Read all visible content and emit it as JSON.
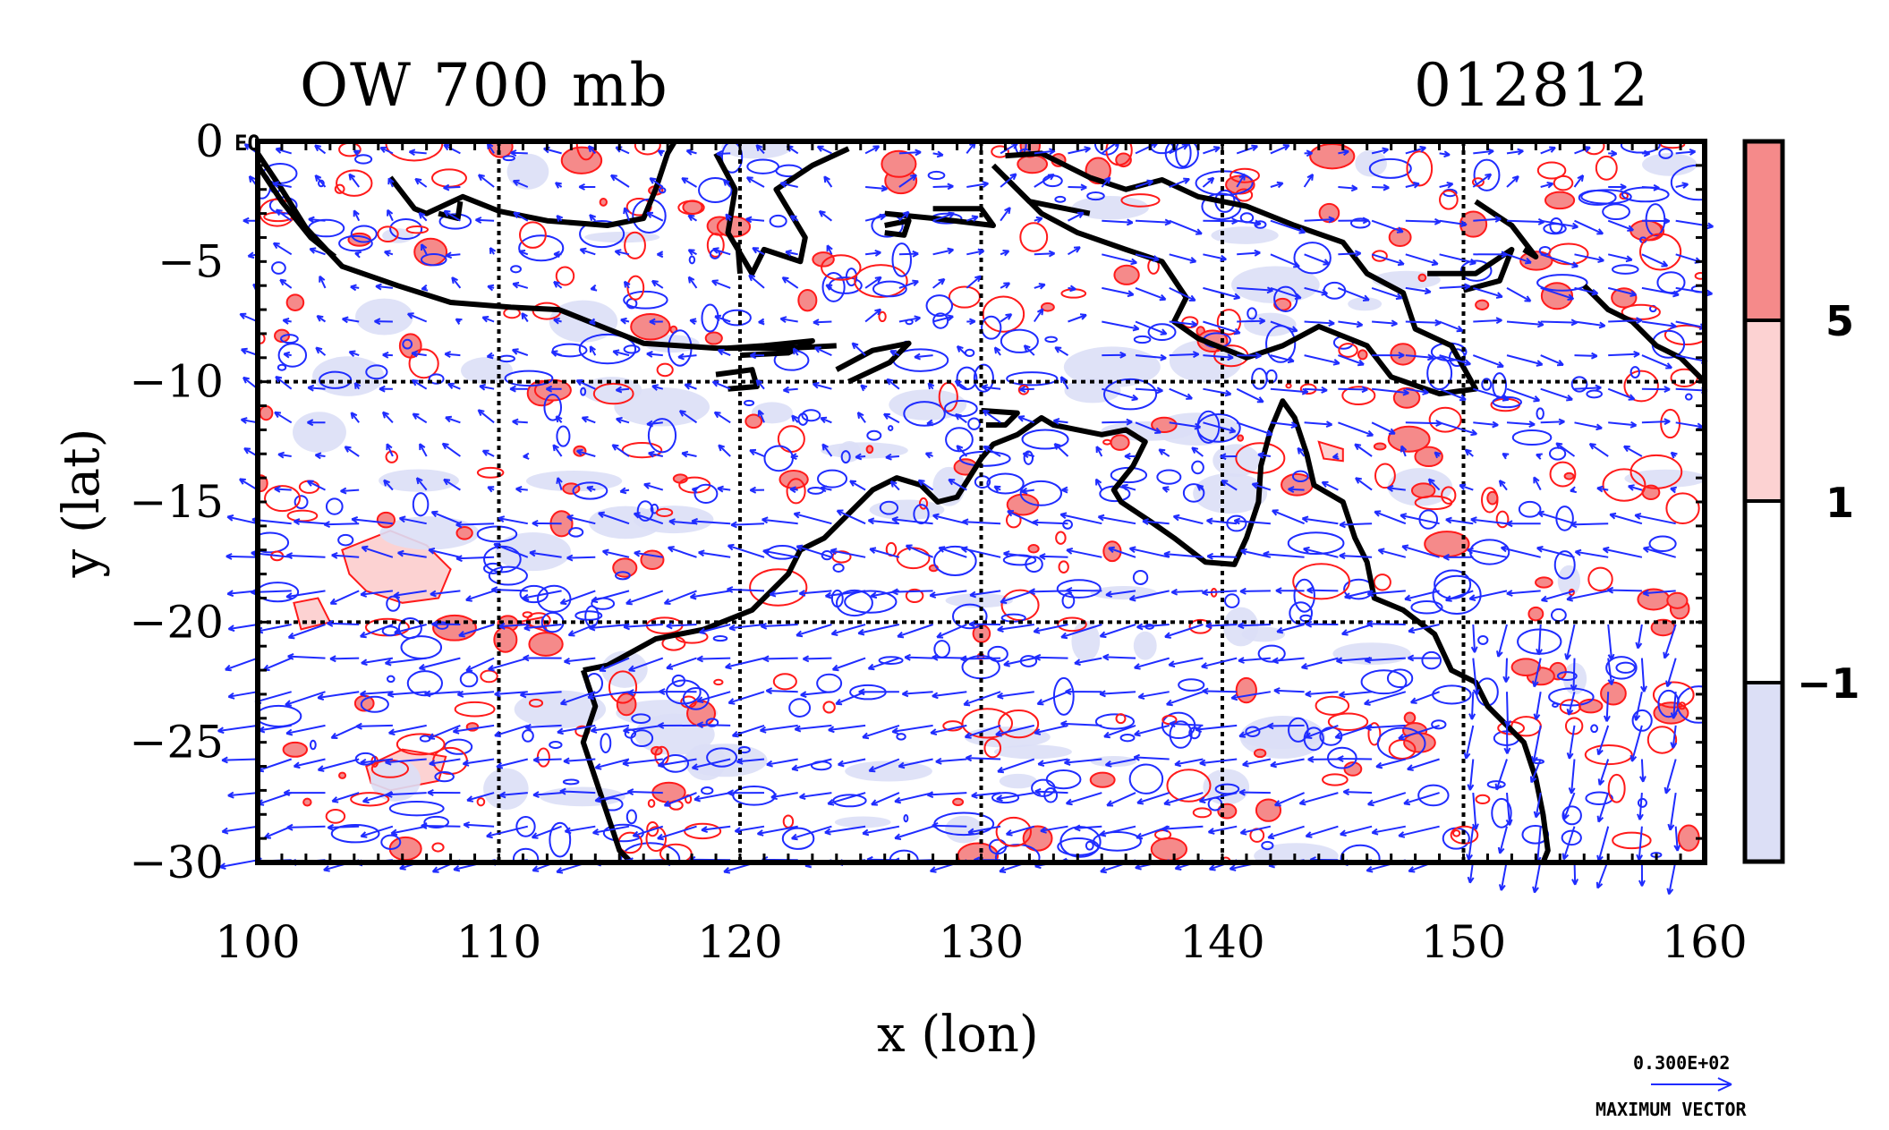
{
  "chart_data": {
    "type": "map",
    "title": "OW 700 mb",
    "timestamp": "012812",
    "xlabel": "x (lon)",
    "ylabel": "y (lat)",
    "xlim": [
      100,
      160
    ],
    "ylim": [
      -30,
      0
    ],
    "x_ticks": [
      "100",
      "110",
      "120",
      "130",
      "140",
      "150",
      "160"
    ],
    "y_ticks": [
      "0",
      "−5",
      "−10",
      "−15",
      "−20",
      "−25",
      "−30"
    ],
    "grid": "dashed, every 10 degrees",
    "eq_label": "EQ",
    "colorbar": {
      "labels": [
        "5",
        "1",
        "−1"
      ],
      "colors": {
        "high": "#f58a8a",
        "mid": "#fcd2d2",
        "zero": "#ffffff",
        "low": "#dcdff6"
      }
    },
    "vector_legend": {
      "value": "0.300E+02",
      "label": "MAXIMUM VECTOR"
    },
    "colors": {
      "vectors": "#1f2cff",
      "positive_contours": "#ff1a1a",
      "coastline": "#000000"
    },
    "features": [
      {
        "name": "Sumatra/Java coastline region",
        "kind": "coastline"
      },
      {
        "name": "Borneo coastline",
        "kind": "coastline"
      },
      {
        "name": "Sulawesi coastline",
        "kind": "coastline"
      },
      {
        "name": "New Guinea coastline",
        "kind": "coastline"
      },
      {
        "name": "Australia coastline",
        "kind": "coastline"
      },
      {
        "name": "Timor coastline",
        "kind": "coastline"
      }
    ]
  }
}
